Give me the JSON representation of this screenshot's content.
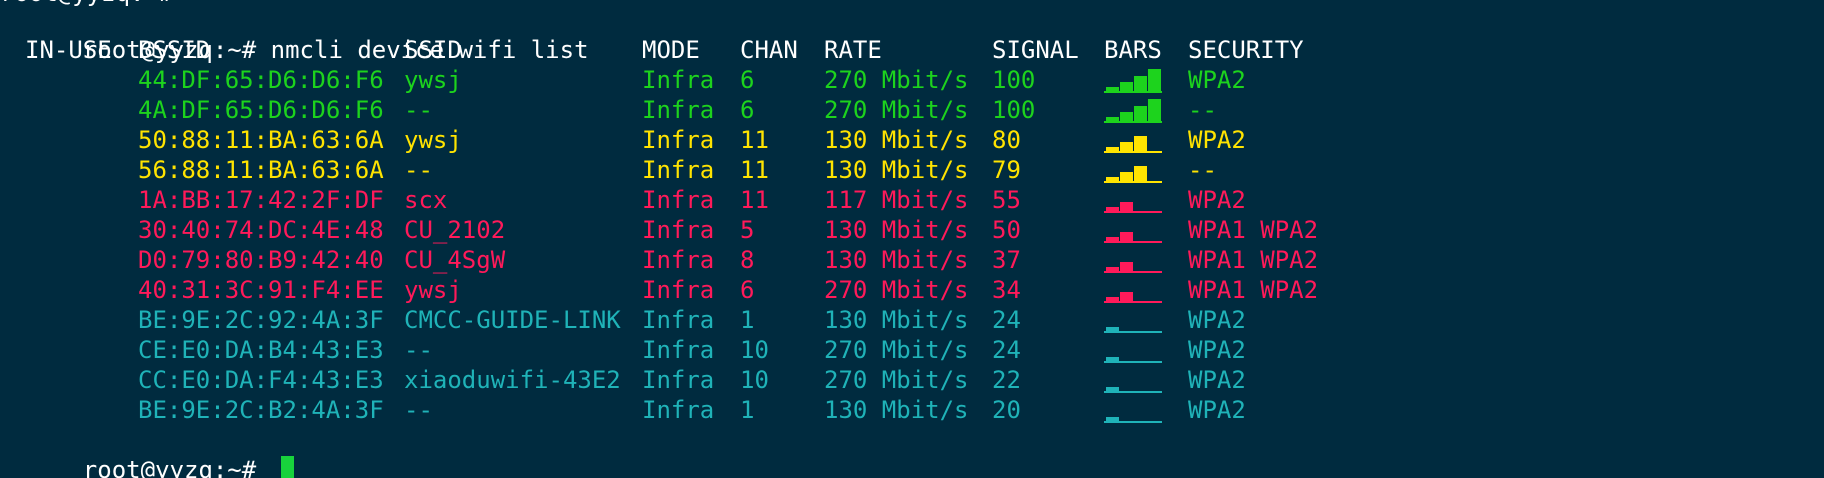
{
  "colors": {
    "background": "#002b3f",
    "text": "#ffffff",
    "green": "#1dd31d",
    "yellow": "#ffe400",
    "red": "#ff1a5a",
    "cyan": "#1fb3b8",
    "cursor": "#18d33c"
  },
  "terminal": {
    "partial_top": "root@yyzq:~# ",
    "prompt": "root@yyzq:~# ",
    "command": "nmcli device wifi list",
    "end_prompt": "root@yyzq:~# "
  },
  "table": {
    "headers": {
      "in_use": "IN-USE",
      "bssid": "BSSID",
      "ssid": "SSID",
      "mode": "MODE",
      "chan": "CHAN",
      "rate": "RATE",
      "signal": "SIGNAL",
      "bars": "BARS",
      "security": "SECURITY"
    },
    "rows": [
      {
        "in_use": "",
        "bssid": "44:DF:65:D6:D6:F6",
        "ssid": "ywsj",
        "mode": "Infra",
        "chan": "6",
        "rate": "270 Mbit/s",
        "signal": "100",
        "bars_level": 4,
        "security": "WPA2",
        "color": "green"
      },
      {
        "in_use": "",
        "bssid": "4A:DF:65:D6:D6:F6",
        "ssid": "--",
        "mode": "Infra",
        "chan": "6",
        "rate": "270 Mbit/s",
        "signal": "100",
        "bars_level": 4,
        "security": "--",
        "color": "green"
      },
      {
        "in_use": "",
        "bssid": "50:88:11:BA:63:6A",
        "ssid": "ywsj",
        "mode": "Infra",
        "chan": "11",
        "rate": "130 Mbit/s",
        "signal": "80",
        "bars_level": 3,
        "security": "WPA2",
        "color": "yellow"
      },
      {
        "in_use": "",
        "bssid": "56:88:11:BA:63:6A",
        "ssid": "--",
        "mode": "Infra",
        "chan": "11",
        "rate": "130 Mbit/s",
        "signal": "79",
        "bars_level": 3,
        "security": "--",
        "color": "yellow"
      },
      {
        "in_use": "",
        "bssid": "1A:BB:17:42:2F:DF",
        "ssid": "scx",
        "mode": "Infra",
        "chan": "11",
        "rate": "117 Mbit/s",
        "signal": "55",
        "bars_level": 2,
        "security": "WPA2",
        "color": "red"
      },
      {
        "in_use": "",
        "bssid": "30:40:74:DC:4E:48",
        "ssid": "CU_2102",
        "mode": "Infra",
        "chan": "5",
        "rate": "130 Mbit/s",
        "signal": "50",
        "bars_level": 2,
        "security": "WPA1 WPA2",
        "color": "red"
      },
      {
        "in_use": "",
        "bssid": "D0:79:80:B9:42:40",
        "ssid": "CU_4SgW",
        "mode": "Infra",
        "chan": "8",
        "rate": "130 Mbit/s",
        "signal": "37",
        "bars_level": 2,
        "security": "WPA1 WPA2",
        "color": "red"
      },
      {
        "in_use": "",
        "bssid": "40:31:3C:91:F4:EE",
        "ssid": "ywsj",
        "mode": "Infra",
        "chan": "6",
        "rate": "270 Mbit/s",
        "signal": "34",
        "bars_level": 2,
        "security": "WPA1 WPA2",
        "color": "red"
      },
      {
        "in_use": "",
        "bssid": "BE:9E:2C:92:4A:3F",
        "ssid": "CMCC-GUIDE-LINK",
        "mode": "Infra",
        "chan": "1",
        "rate": "130 Mbit/s",
        "signal": "24",
        "bars_level": 1,
        "security": "WPA2",
        "color": "cyan"
      },
      {
        "in_use": "",
        "bssid": "CE:E0:DA:B4:43:E3",
        "ssid": "--",
        "mode": "Infra",
        "chan": "10",
        "rate": "270 Mbit/s",
        "signal": "24",
        "bars_level": 1,
        "security": "WPA2",
        "color": "cyan"
      },
      {
        "in_use": "",
        "bssid": "CC:E0:DA:F4:43:E3",
        "ssid": "xiaoduwifi-43E2",
        "mode": "Infra",
        "chan": "10",
        "rate": "270 Mbit/s",
        "signal": "22",
        "bars_level": 1,
        "security": "WPA2",
        "color": "cyan"
      },
      {
        "in_use": "",
        "bssid": "BE:9E:2C:B2:4A:3F",
        "ssid": "--",
        "mode": "Infra",
        "chan": "1",
        "rate": "130 Mbit/s",
        "signal": "20",
        "bars_level": 1,
        "security": "WPA2",
        "color": "cyan"
      }
    ]
  }
}
